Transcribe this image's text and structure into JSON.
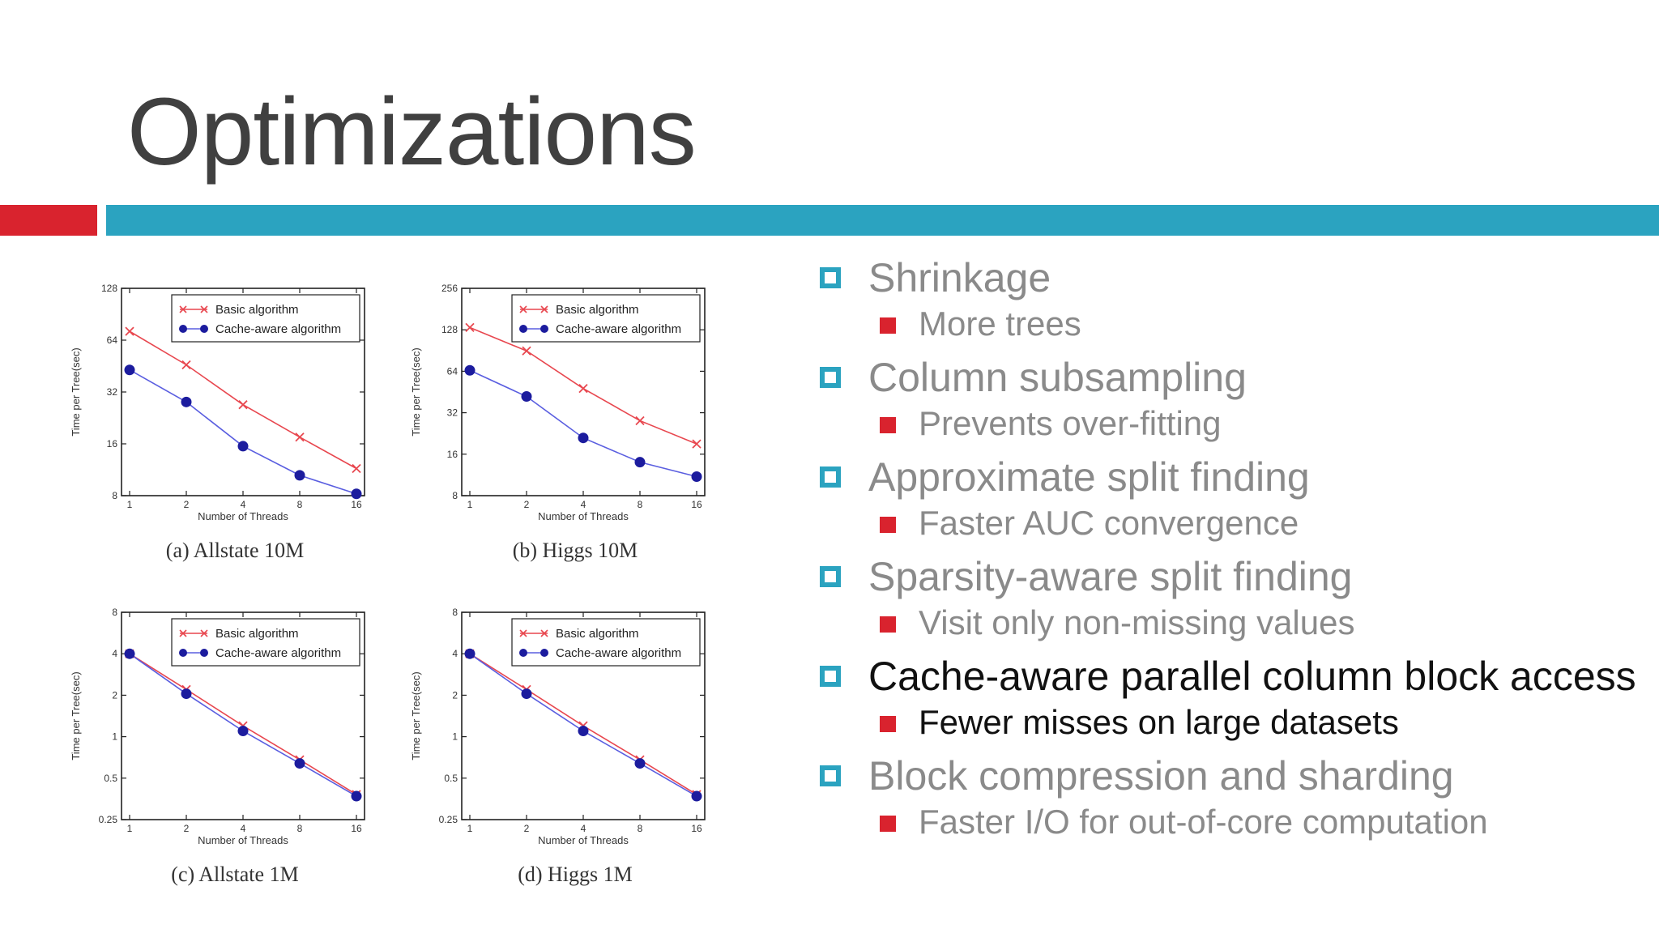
{
  "slide": {
    "title": "Optimizations",
    "accent_red": "#d9232e",
    "accent_teal": "#2ba3c0"
  },
  "bullets": [
    {
      "text": "Shrinkage",
      "sub": "More trees",
      "dark": false
    },
    {
      "text": "Column subsampling",
      "sub": "Prevents over-fitting",
      "dark": false
    },
    {
      "text": "Approximate split finding",
      "sub": "Faster AUC convergence",
      "dark": false
    },
    {
      "text": "Sparsity-aware split finding",
      "sub": "Visit only non-missing values",
      "dark": false
    },
    {
      "text": "Cache-aware parallel column block access",
      "sub": "Fewer misses on large datasets",
      "dark": true
    },
    {
      "text": "Block compression and sharding",
      "sub": "Faster I/O for out-of-core computation",
      "dark": false
    }
  ],
  "chart_data": [
    {
      "type": "line",
      "caption": "(a) Allstate 10M",
      "xlabel": "Number of Threads",
      "ylabel": "Time per Tree(sec)",
      "xscale": "log2",
      "yscale": "log2",
      "x": [
        1,
        2,
        4,
        8,
        16
      ],
      "xticks": [
        "1",
        "2",
        "4",
        "8",
        "16"
      ],
      "ylim": [
        8,
        128
      ],
      "yticks": [
        "8",
        "16",
        "32",
        "64",
        "128"
      ],
      "legend": "top-right",
      "series": [
        {
          "name": "Basic algorithm",
          "color": "#e8474f",
          "marker": "x",
          "values": [
            72,
            46,
            27,
            17.5,
            11.5
          ]
        },
        {
          "name": "Cache-aware algorithm",
          "color": "#5a5ee0",
          "marker": "o",
          "values": [
            43,
            28,
            15.5,
            10.5,
            8.2
          ]
        }
      ]
    },
    {
      "type": "line",
      "caption": "(b) Higgs 10M",
      "xlabel": "Number of Threads",
      "ylabel": "Time per Tree(sec)",
      "xscale": "log2",
      "yscale": "log2",
      "x": [
        1,
        2,
        4,
        8,
        16
      ],
      "xticks": [
        "1",
        "2",
        "4",
        "8",
        "16"
      ],
      "ylim": [
        8,
        256
      ],
      "yticks": [
        "8",
        "16",
        "32",
        "64",
        "128",
        "256"
      ],
      "legend": "top-right",
      "series": [
        {
          "name": "Basic algorithm",
          "color": "#e8474f",
          "marker": "x",
          "values": [
            133,
            90,
            48,
            28,
            19
          ]
        },
        {
          "name": "Cache-aware algorithm",
          "color": "#5a5ee0",
          "marker": "o",
          "values": [
            65,
            42,
            21,
            14,
            11
          ]
        }
      ]
    },
    {
      "type": "line",
      "caption": "(c) Allstate 1M",
      "xlabel": "Number of Threads",
      "ylabel": "Time per Tree(sec)",
      "xscale": "log2",
      "yscale": "log2",
      "x": [
        1,
        2,
        4,
        8,
        16
      ],
      "xticks": [
        "1",
        "2",
        "4",
        "8",
        "16"
      ],
      "ylim": [
        0.25,
        8
      ],
      "yticks": [
        "0.25",
        "0.5",
        "1",
        "2",
        "4",
        "8"
      ],
      "legend": "top-right",
      "series": [
        {
          "name": "Basic algorithm",
          "color": "#e8474f",
          "marker": "x",
          "values": [
            4.0,
            2.2,
            1.2,
            0.68,
            0.38
          ]
        },
        {
          "name": "Cache-aware algorithm",
          "color": "#5a5ee0",
          "marker": "o",
          "values": [
            4.0,
            2.05,
            1.1,
            0.64,
            0.37
          ]
        }
      ]
    },
    {
      "type": "line",
      "caption": "(d) Higgs 1M",
      "xlabel": "Number of Threads",
      "ylabel": "Time per Tree(sec)",
      "xscale": "log2",
      "yscale": "log2",
      "x": [
        1,
        2,
        4,
        8,
        16
      ],
      "xticks": [
        "1",
        "2",
        "4",
        "8",
        "16"
      ],
      "ylim": [
        0.25,
        8
      ],
      "yticks": [
        "0.25",
        "0.5",
        "1",
        "2",
        "4",
        "8"
      ],
      "legend": "top-right",
      "series": [
        {
          "name": "Basic algorithm",
          "color": "#e8474f",
          "marker": "x",
          "values": [
            4.0,
            2.2,
            1.2,
            0.68,
            0.38
          ]
        },
        {
          "name": "Cache-aware algorithm",
          "color": "#5a5ee0",
          "marker": "o",
          "values": [
            4.0,
            2.05,
            1.1,
            0.64,
            0.37
          ]
        }
      ]
    }
  ]
}
